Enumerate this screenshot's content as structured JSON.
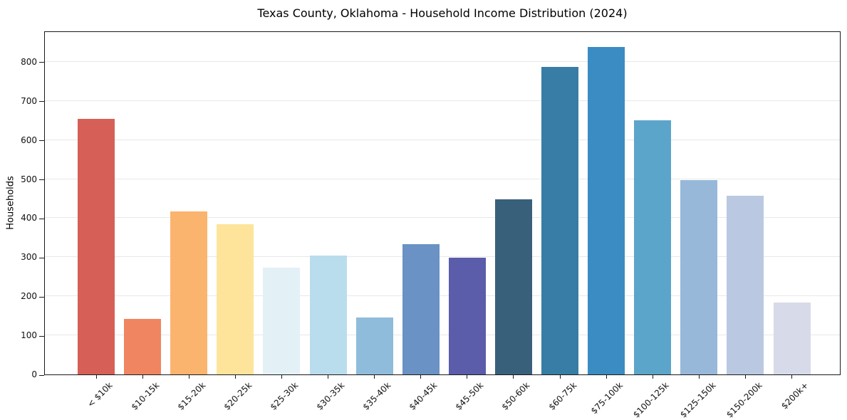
{
  "chart_data": {
    "type": "bar",
    "title": "Texas County, Oklahoma - Household Income Distribution (2024)",
    "xlabel": "",
    "ylabel": "Households",
    "categories": [
      "< $10k",
      "$10-15k",
      "$15-20k",
      "$20-25k",
      "$25-30k",
      "$30-35k",
      "$35-40k",
      "$40-45k",
      "$45-50k",
      "$50-60k",
      "$60-75k",
      "$75-100k",
      "$100-125k",
      "$125-150k",
      "$150-200k",
      "$200k+"
    ],
    "values": [
      655,
      142,
      418,
      385,
      274,
      305,
      145,
      333,
      298,
      449,
      788,
      838,
      651,
      498,
      457,
      184
    ],
    "bar_colors": [
      "#d65f57",
      "#f08562",
      "#fbb46d",
      "#fde49a",
      "#e3f1f6",
      "#b9ddec",
      "#8fbcda",
      "#6a92c4",
      "#5b5caa",
      "#38607a",
      "#377da5",
      "#3a8cc3",
      "#5ca5ca",
      "#97b8d9",
      "#bac9e1",
      "#d7dae8"
    ],
    "ylim": [
      0,
      880
    ],
    "yticks": [
      0,
      100,
      200,
      300,
      400,
      500,
      600,
      700,
      800
    ],
    "grid": "horizontal",
    "legend": "none"
  },
  "figure": {
    "background": "#ffffff",
    "spine_color": "#1a1a1a",
    "grid_color": "#e8e8e8"
  }
}
